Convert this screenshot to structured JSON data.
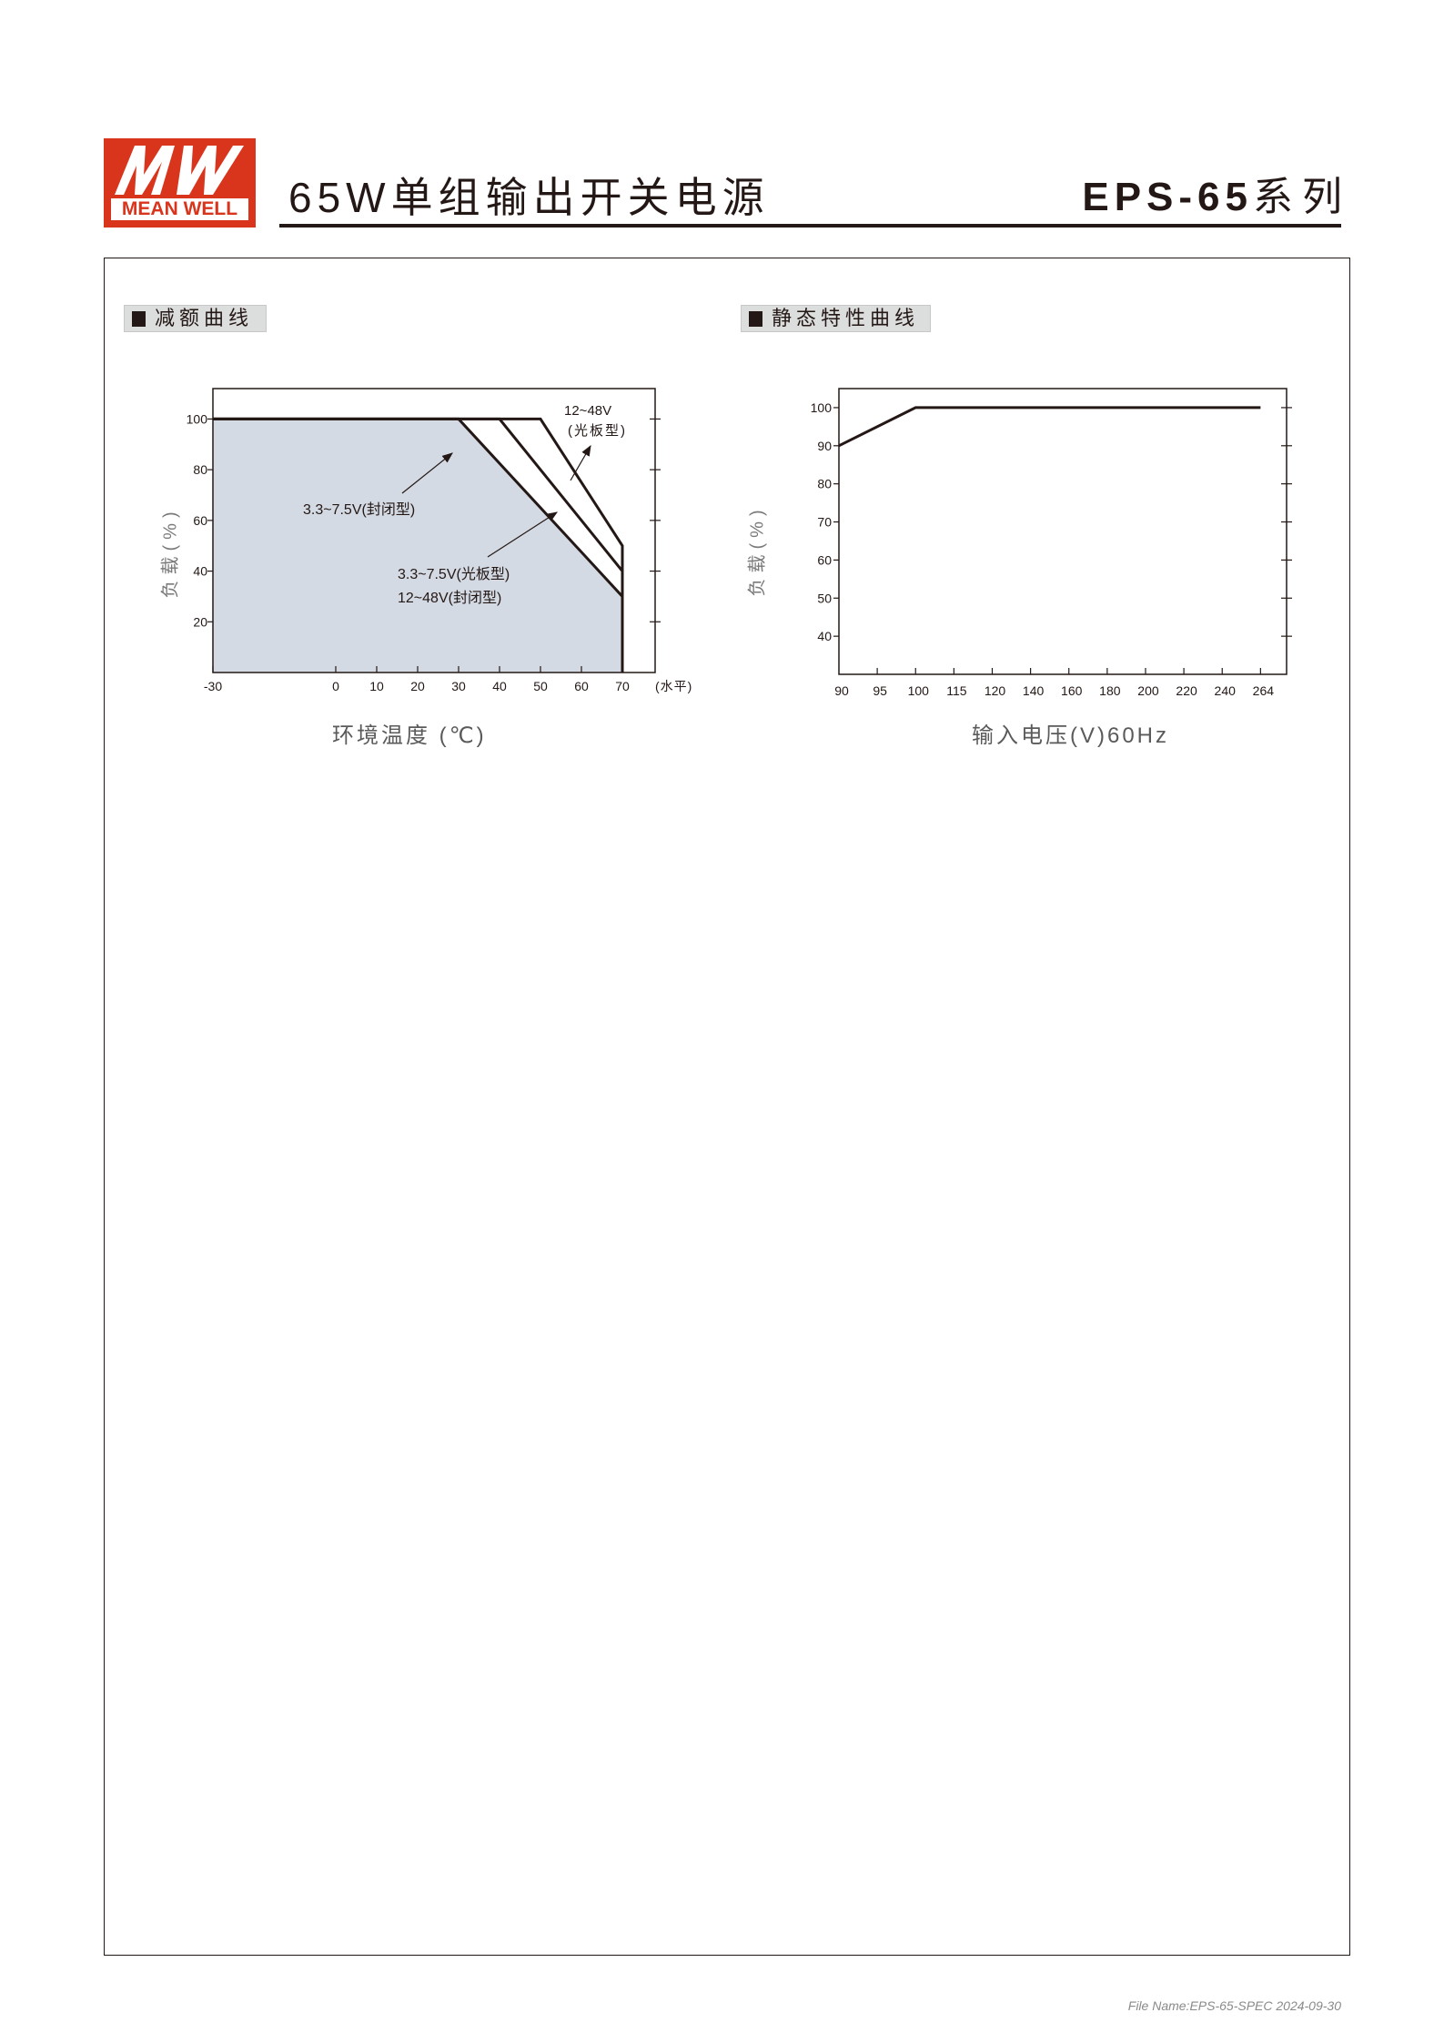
{
  "header": {
    "logo_text": "MW",
    "logo_brand": "MEAN WELL",
    "title": "65W单组输出开关电源",
    "model": "EPS-65",
    "series_suffix": "系列"
  },
  "sections": [
    {
      "label": "减额曲线"
    },
    {
      "label": "静态特性曲线"
    }
  ],
  "colors": {
    "brand_red": "#d9341c",
    "shade": "#d4dae3",
    "ink": "#231815"
  },
  "chart_data": [
    {
      "type": "area",
      "title": "减额曲线",
      "xlabel": "环境温度 (℃)",
      "ylabel": "负载(%)",
      "x_unit_note": "(水平)",
      "xlim": [
        -30,
        78
      ],
      "ylim": [
        0,
        112
      ],
      "x_ticks": [
        -30,
        0,
        10,
        20,
        30,
        40,
        50,
        60,
        70
      ],
      "y_ticks": [
        20,
        40,
        60,
        80,
        100
      ],
      "grid": false,
      "series": [
        {
          "name": "3.3~7.5V(封闭型)",
          "x": [
            -30,
            30,
            70,
            70
          ],
          "y": [
            100,
            100,
            30,
            0
          ],
          "shaded": true
        },
        {
          "name": "3.3~7.5V(光板型) 12~48V(封闭型)",
          "x": [
            -30,
            40,
            70
          ],
          "y": [
            100,
            100,
            40
          ]
        },
        {
          "name": "12~48V (光板型)",
          "x": [
            -30,
            50,
            70,
            70
          ],
          "y": [
            100,
            100,
            50,
            0
          ]
        }
      ],
      "annotations": [
        "12~48V",
        "(光板型)",
        "3.3~7.5V(封闭型)",
        "3.3~7.5V(光板型)",
        "12~48V(封闭型)"
      ]
    },
    {
      "type": "line",
      "title": "静态特性曲线",
      "xlabel": "输入电压(V)60Hz",
      "ylabel": "负载(%)",
      "categories": [
        "90",
        "95",
        "100",
        "115",
        "120",
        "140",
        "160",
        "180",
        "200",
        "220",
        "240",
        "264"
      ],
      "ylim": [
        30,
        105
      ],
      "y_ticks": [
        40,
        50,
        60,
        70,
        80,
        90,
        100
      ],
      "grid": false,
      "series": [
        {
          "x": [
            "90",
            "100",
            "264"
          ],
          "y": [
            90,
            100,
            100
          ]
        }
      ]
    }
  ],
  "footer": {
    "text": "File Name:EPS-65-SPEC   2024-09-30"
  }
}
